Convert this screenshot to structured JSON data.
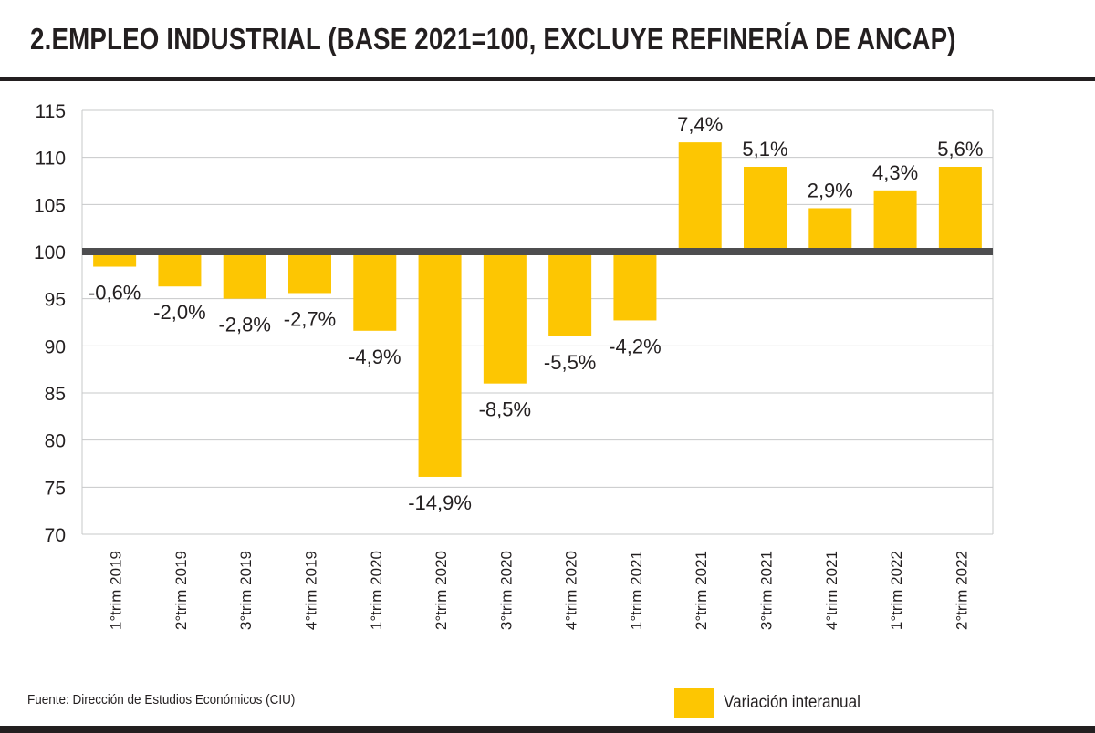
{
  "header": {
    "title": "2.EMPLEO INDUSTRIAL (BASE 2021=100, EXCLUYE REFINERÍA DE ANCAP)"
  },
  "footer": {
    "source": "Fuente: Dirección de Estudios Económicos (CIU)"
  },
  "colors": {
    "bar": "#fdc602",
    "baseline": "#4d4d4f",
    "grid": "#c7c8ca",
    "text": "#231f20"
  },
  "chart_data": {
    "type": "bar",
    "title": "2.EMPLEO INDUSTRIAL (BASE 2021=100, EXCLUYE REFINERÍA DE ANCAP)",
    "categories": [
      "1°trim 2019",
      "2°trim 2019",
      "3°trim 2019",
      "4°trim 2019",
      "1°trim 2020",
      "2°trim 2020",
      "3°trim 2020",
      "4°trim 2020",
      "1°trim 2021",
      "2°trim 2021",
      "3°trim 2021",
      "4°trim 2021",
      "1°trim 2022",
      "2°trim 2022"
    ],
    "values": [
      98.4,
      96.3,
      95.0,
      95.6,
      91.6,
      76.1,
      86.0,
      91.0,
      92.7,
      111.6,
      109.0,
      104.6,
      106.5,
      109.0
    ],
    "labels": [
      "-0,6%",
      "-2,0%",
      "-2,8%",
      "-2,7%",
      "-4,9%",
      "-14,9%",
      "-8,5%",
      "-5,5%",
      "-4,2%",
      "7,4%",
      "5,1%",
      "2,9%",
      "4,3%",
      "5,6%"
    ],
    "baseline": 100,
    "ylim": [
      70,
      115
    ],
    "yticks": [
      70,
      75,
      80,
      85,
      90,
      95,
      100,
      105,
      110,
      115
    ],
    "grid": true,
    "legend": {
      "position": "bottom-right",
      "label": "Variación interanual"
    },
    "xlabel": "",
    "ylabel": ""
  }
}
